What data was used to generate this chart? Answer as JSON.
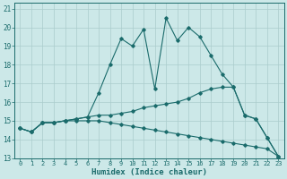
{
  "xlabel": "Humidex (Indice chaleur)",
  "background_color": "#cce8e8",
  "grid_color": "#aacccc",
  "line_color": "#1a6b6b",
  "xlim": [
    -0.5,
    23.5
  ],
  "ylim": [
    13,
    21.3
  ],
  "xticks": [
    0,
    1,
    2,
    3,
    4,
    5,
    6,
    7,
    8,
    9,
    10,
    11,
    12,
    13,
    14,
    15,
    16,
    17,
    18,
    19,
    20,
    21,
    22,
    23
  ],
  "yticks": [
    13,
    14,
    15,
    16,
    17,
    18,
    19,
    20,
    21
  ],
  "line1_x": [
    0,
    1,
    2,
    3,
    4,
    5,
    6,
    7,
    8,
    9,
    10,
    11,
    12,
    13,
    14,
    15,
    16,
    17,
    18,
    19,
    20,
    21,
    22,
    23
  ],
  "line1_y": [
    14.6,
    14.4,
    14.9,
    14.9,
    15.0,
    15.1,
    15.2,
    16.5,
    18.0,
    19.4,
    19.0,
    19.9,
    16.7,
    20.5,
    19.3,
    20.0,
    19.5,
    18.5,
    17.5,
    16.8,
    15.3,
    15.1,
    14.1,
    13.1
  ],
  "line2_x": [
    0,
    1,
    2,
    3,
    4,
    5,
    6,
    7,
    8,
    9,
    10,
    11,
    12,
    13,
    14,
    15,
    16,
    17,
    18,
    19,
    20,
    21,
    22,
    23
  ],
  "line2_y": [
    14.6,
    14.4,
    14.9,
    14.9,
    15.0,
    15.1,
    15.2,
    15.3,
    15.3,
    15.4,
    15.5,
    15.7,
    15.8,
    15.9,
    16.0,
    16.2,
    16.5,
    16.7,
    16.8,
    16.8,
    15.3,
    15.1,
    14.1,
    13.1
  ],
  "line3_x": [
    0,
    1,
    2,
    3,
    4,
    5,
    6,
    7,
    8,
    9,
    10,
    11,
    12,
    13,
    14,
    15,
    16,
    17,
    18,
    19,
    20,
    21,
    22,
    23
  ],
  "line3_y": [
    14.6,
    14.4,
    14.9,
    14.9,
    15.0,
    15.0,
    15.0,
    15.0,
    14.9,
    14.8,
    14.7,
    14.6,
    14.5,
    14.4,
    14.3,
    14.2,
    14.1,
    14.0,
    13.9,
    13.8,
    13.7,
    13.6,
    13.5,
    13.1
  ]
}
